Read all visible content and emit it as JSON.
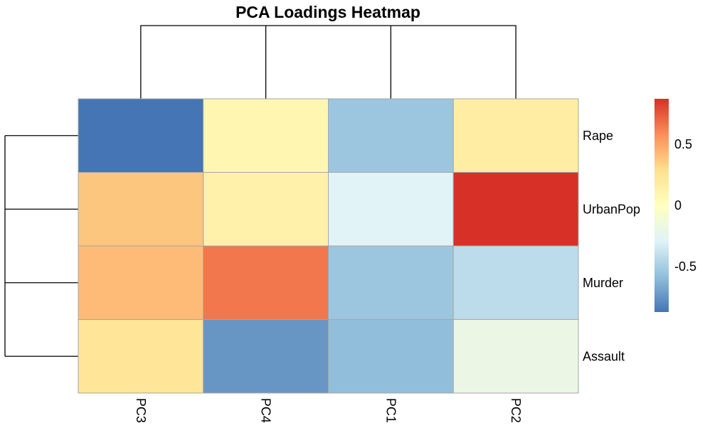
{
  "chart_data": {
    "type": "heatmap",
    "title": "PCA Loadings Heatmap",
    "rows": [
      "Rape",
      "UrbanPop",
      "Murder",
      "Assault"
    ],
    "columns": [
      "PC3",
      "PC4",
      "PC1",
      "PC2"
    ],
    "values": [
      [
        -0.87,
        0.08,
        -0.54,
        0.17
      ],
      [
        0.38,
        0.13,
        -0.28,
        0.87
      ],
      [
        0.42,
        0.65,
        -0.54,
        -0.42
      ],
      [
        0.24,
        -0.74,
        -0.58,
        -0.19
      ]
    ],
    "color_scale": {
      "min": -0.87,
      "max": 0.87,
      "stops": [
        "#4575B4",
        "#91BFDB",
        "#E0F3F8",
        "#FFFFBF",
        "#FEE090",
        "#FC8D59",
        "#D73027"
      ]
    },
    "legend": {
      "position": "right",
      "ticks": [
        {
          "label": "0.5",
          "value": 0.5
        },
        {
          "label": "0",
          "value": 0
        },
        {
          "label": "-0.5",
          "value": -0.5
        }
      ]
    },
    "row_dendrogram": true,
    "column_dendrogram": true
  }
}
